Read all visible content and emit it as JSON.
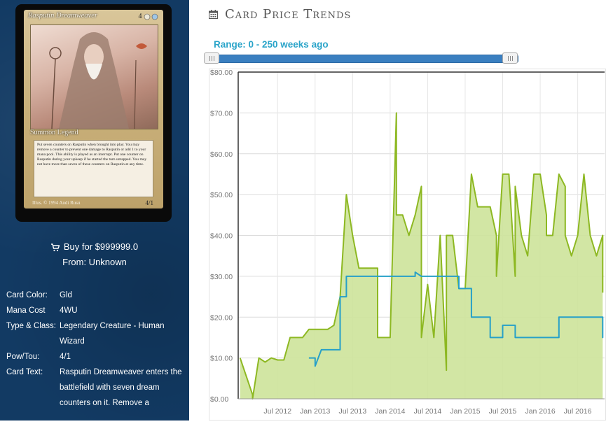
{
  "card": {
    "name": "Rasputin Dreamweaver",
    "cost_text": "4",
    "type_line": "Summon Legend",
    "rules_text": "Put seven counters on Rasputin when brought into play. You may remove a counter to prevent one damage to Rasputin or add 1 to your mana pool. This ability is played as an interrupt. Put one counter on Rasputin during your upkeep if he started the turn untapped. You may not have more than seven of these counters on Rasputin at any time.",
    "illus": "Illus. © 1994 Andi Rusu",
    "pt": "4/1"
  },
  "buy": {
    "label": "Buy for $999999.0",
    "from": "From: Unknown"
  },
  "info": [
    {
      "key": "Card Color:",
      "value": "Gld"
    },
    {
      "key": "Mana Cost",
      "value": "4WU"
    },
    {
      "key": "Type & Class:",
      "value": "Legendary Creature - Human Wizard"
    },
    {
      "key": "Pow/Tou:",
      "value": "4/1"
    },
    {
      "key": "Card Text:",
      "value": "Rasputin Dreamweaver enters the battlefield with seven dream counters on it. Remove a"
    }
  ],
  "header": {
    "title": "Card Price Trends"
  },
  "range": {
    "label": "Range: 0 - 250 weeks ago"
  },
  "colors": {
    "green_line": "#8db822",
    "green_fill": "#cde39a",
    "blue_line": "#26a0c8",
    "sidebar": "#123a63"
  },
  "chart_data": {
    "type": "line",
    "x_axis_ticks": [
      "Jul 2012",
      "Jan 2013",
      "Jul 2013",
      "Jan 2014",
      "Jul 2014",
      "Jan 2015",
      "Jul 2015",
      "Jan 2016",
      "Jul 2016"
    ],
    "y_axis_ticks": [
      "$0.00",
      "$10.00",
      "$20.00",
      "$30.00",
      "$40.00",
      "$50.00",
      "$60.00",
      "$70.00",
      "$80.00"
    ],
    "ylim": [
      0,
      80
    ],
    "xlim": [
      "2012-01",
      "2016-11"
    ],
    "grid": true,
    "series": [
      {
        "key": "green",
        "area": true,
        "points": [
          [
            "2012-01",
            10
          ],
          [
            "2012-03",
            1
          ],
          [
            "2012-03",
            0
          ],
          [
            "2012-04",
            10
          ],
          [
            "2012-05",
            9
          ],
          [
            "2012-06",
            10
          ],
          [
            "2012-07",
            9.5
          ],
          [
            "2012-08",
            9.5
          ],
          [
            "2012-09",
            15
          ],
          [
            "2012-11",
            15
          ],
          [
            "2012-12",
            17
          ],
          [
            "2013-03",
            17
          ],
          [
            "2013-04",
            18
          ],
          [
            "2013-05",
            25
          ],
          [
            "2013-06",
            50
          ],
          [
            "2013-07",
            40
          ],
          [
            "2013-08",
            32
          ],
          [
            "2013-09",
            32
          ],
          [
            "2013-11",
            32
          ],
          [
            "2013-11",
            15
          ],
          [
            "2013-12",
            15
          ],
          [
            "2013-12",
            15
          ],
          [
            "2014-01",
            15
          ],
          [
            "2014-02",
            70
          ],
          [
            "2014-02",
            45
          ],
          [
            "2014-03",
            45
          ],
          [
            "2014-04",
            40
          ],
          [
            "2014-05",
            45
          ],
          [
            "2014-06",
            52
          ],
          [
            "2014-06",
            15
          ],
          [
            "2014-07",
            28
          ],
          [
            "2014-08",
            15
          ],
          [
            "2014-09",
            40
          ],
          [
            "2014-10",
            7
          ],
          [
            "2014-10",
            40
          ],
          [
            "2014-11",
            40
          ],
          [
            "2014-12",
            27
          ],
          [
            "2015-01",
            27
          ],
          [
            "2015-02",
            55
          ],
          [
            "2015-03",
            47
          ],
          [
            "2015-05",
            47
          ],
          [
            "2015-06",
            40
          ],
          [
            "2015-06",
            30
          ],
          [
            "2015-07",
            55
          ],
          [
            "2015-08",
            55
          ],
          [
            "2015-09",
            30
          ],
          [
            "2015-09",
            52
          ],
          [
            "2015-10",
            40
          ],
          [
            "2015-11",
            35
          ],
          [
            "2015-12",
            55
          ],
          [
            "2016-01",
            55
          ],
          [
            "2016-02",
            45
          ],
          [
            "2016-02",
            40
          ],
          [
            "2016-03",
            40
          ],
          [
            "2016-04",
            55
          ],
          [
            "2016-05",
            52
          ],
          [
            "2016-05",
            40
          ],
          [
            "2016-06",
            35
          ],
          [
            "2016-07",
            40
          ],
          [
            "2016-08",
            55
          ],
          [
            "2016-09",
            40
          ],
          [
            "2016-10",
            35
          ],
          [
            "2016-11",
            40
          ],
          [
            "2016-11",
            26
          ]
        ]
      },
      {
        "key": "blue",
        "area": false,
        "points": [
          [
            "2012-12",
            10
          ],
          [
            "2013-01",
            10
          ],
          [
            "2013-01",
            8
          ],
          [
            "2013-02",
            12
          ],
          [
            "2013-05",
            12
          ],
          [
            "2013-05",
            25
          ],
          [
            "2013-06",
            25
          ],
          [
            "2013-06",
            30
          ],
          [
            "2014-05",
            30
          ],
          [
            "2014-05",
            31
          ],
          [
            "2014-06",
            30
          ],
          [
            "2014-12",
            30
          ],
          [
            "2014-12",
            27
          ],
          [
            "2015-02",
            27
          ],
          [
            "2015-02",
            20
          ],
          [
            "2015-05",
            20
          ],
          [
            "2015-05",
            15
          ],
          [
            "2015-07",
            15
          ],
          [
            "2015-07",
            18
          ],
          [
            "2015-09",
            18
          ],
          [
            "2015-09",
            15
          ],
          [
            "2016-04",
            15
          ],
          [
            "2016-04",
            20
          ],
          [
            "2016-11",
            20
          ],
          [
            "2016-11",
            15
          ],
          [
            "2016-11",
            20
          ]
        ]
      }
    ]
  }
}
